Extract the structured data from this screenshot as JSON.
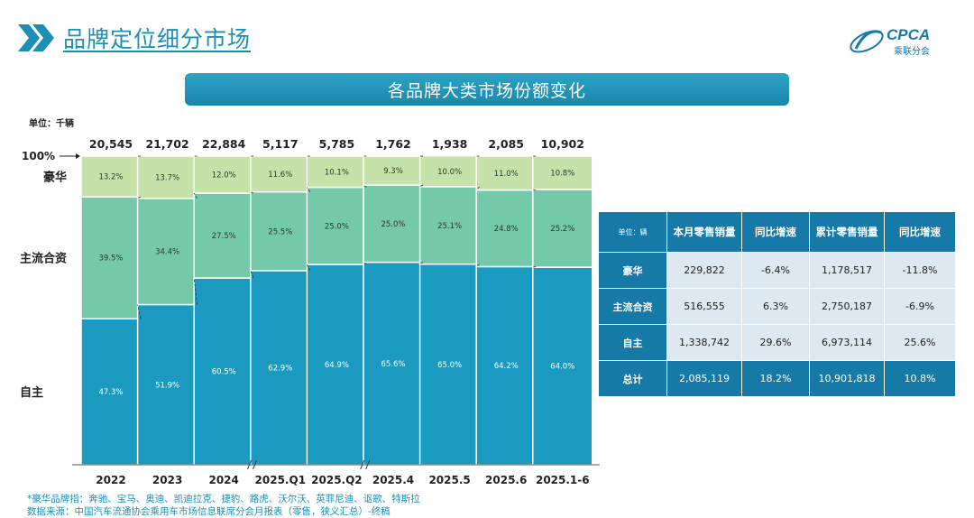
{
  "header": {
    "title": "品牌定位细分市场"
  },
  "logo": {
    "text": "CPCA",
    "subtext": "乘联分会"
  },
  "banner": {
    "title": "各品牌大类市场份额变化"
  },
  "chart_unit": "单位：千辆",
  "chart_data": {
    "type": "bar",
    "stacked": "percent",
    "categories": [
      "2022",
      "2023",
      "2024",
      "2025.Q1",
      "2025.Q2",
      "2025.4",
      "2025.5",
      "2025.6",
      "2025.1-6"
    ],
    "totals": [
      "20,545",
      "21,702",
      "22,884",
      "5,117",
      "5,785",
      "1,762",
      "1,938",
      "2,085",
      "10,902"
    ],
    "top_axis_label": "100%",
    "series": [
      {
        "name": "自主",
        "color": "#1a9ac0",
        "values": [
          47.3,
          51.9,
          60.5,
          62.9,
          64.9,
          65.6,
          65.0,
          64.2,
          64.0
        ],
        "labels": [
          "47.3%",
          "51.9%",
          "60.5%",
          "62.9%",
          "64.9%",
          "65.6%",
          "65.0%",
          "64.2%",
          "64.0%"
        ]
      },
      {
        "name": "主流合资",
        "color": "#74c9a9",
        "values": [
          39.5,
          34.4,
          27.5,
          25.5,
          25.0,
          25.0,
          25.1,
          24.8,
          25.2
        ],
        "labels": [
          "39.5%",
          "34.4%",
          "27.5%",
          "25.5%",
          "25.0%",
          "25.0%",
          "25.1%",
          "24.8%",
          "25.2%"
        ]
      },
      {
        "name": "豪华",
        "color": "#c5e3a8",
        "values": [
          13.2,
          13.7,
          12.0,
          11.6,
          10.1,
          9.3,
          10.0,
          11.0,
          10.8
        ],
        "labels": [
          "13.2%",
          "13.7%",
          "12.0%",
          "11.6%",
          "10.1%",
          "9.3%",
          "10.0%",
          "11.0%",
          "10.8%"
        ]
      }
    ],
    "ylim": [
      0,
      100
    ],
    "axis_breaks_after": [
      "2024",
      "2025.Q2"
    ]
  },
  "table": {
    "headers": [
      "单位：辆",
      "本月零售销量",
      "同比增速",
      "累计零售销量",
      "同比增速"
    ],
    "rows": [
      [
        "豪华",
        "229,822",
        "-6.4%",
        "1,178,517",
        "-11.8%"
      ],
      [
        "主流合资",
        "516,555",
        "6.3%",
        "2,750,187",
        "-6.9%"
      ],
      [
        "自主",
        "1,338,742",
        "29.6%",
        "6,973,114",
        "25.6%"
      ]
    ],
    "total_row": [
      "总计",
      "2,085,119",
      "18.2%",
      "10,901,818",
      "10.8%"
    ]
  },
  "footnotes": {
    "luxury_brands": "*豪华品牌指：奔驰、宝马、奥迪、凯迪拉克、捷豹、路虎、沃尔沃、英菲尼迪、讴歌、特斯拉",
    "source": "数据来源：中国汽车流通协会乘用车市场信息联席分会月报表（零售，狭义汇总）-终稿"
  }
}
